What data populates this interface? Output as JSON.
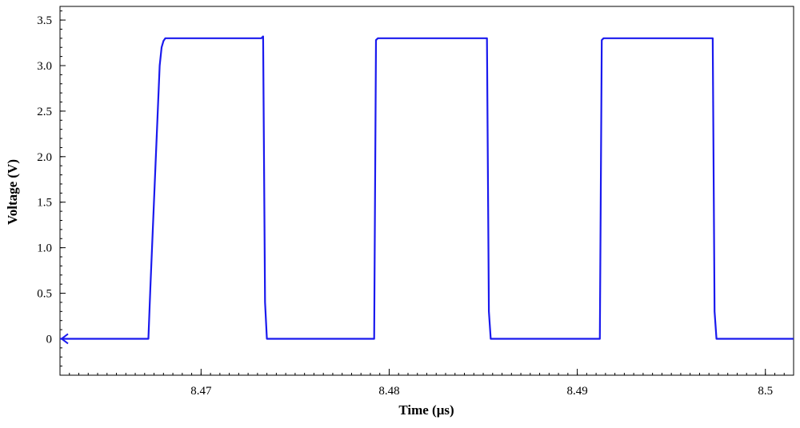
{
  "chart_data": {
    "type": "line",
    "title": "",
    "xlabel": "Time (μs)",
    "ylabel": "Voltage (V)",
    "xlim": [
      8.4625,
      8.5015
    ],
    "ylim": [
      -0.4,
      3.65
    ],
    "x_ticks": [
      {
        "value": 8.47,
        "label": "8.47"
      },
      {
        "value": 8.48,
        "label": "8.48"
      },
      {
        "value": 8.49,
        "label": "8.49"
      },
      {
        "value": 8.5,
        "label": "8.5"
      }
    ],
    "y_ticks": [
      {
        "value": 0,
        "label": "0"
      },
      {
        "value": 0.5,
        "label": "0.5"
      },
      {
        "value": 1.0,
        "label": "1.0"
      },
      {
        "value": 1.5,
        "label": "1.5"
      },
      {
        "value": 2.0,
        "label": "2.0"
      },
      {
        "value": 2.5,
        "label": "2.5"
      },
      {
        "value": 3.0,
        "label": "3.0"
      },
      {
        "value": 3.5,
        "label": "3.5"
      }
    ],
    "grid": false,
    "series": [
      {
        "color": "#1a1aee",
        "x": [
          8.4625,
          8.4672,
          8.4673,
          8.4678,
          8.4679,
          8.468,
          8.4681,
          8.4732,
          8.4733,
          8.4734,
          8.4735,
          8.4792,
          8.4793,
          8.4794,
          8.4852,
          8.4853,
          8.4854,
          8.4912,
          8.4913,
          8.4914,
          8.4972,
          8.4973,
          8.4974,
          8.5015
        ],
        "y": [
          0,
          0,
          0.55,
          3.0,
          3.2,
          3.27,
          3.3,
          3.3,
          3.32,
          0.4,
          0,
          0,
          3.28,
          3.3,
          3.3,
          0.3,
          0,
          0,
          3.28,
          3.3,
          3.3,
          0.3,
          0,
          0
        ]
      }
    ],
    "cursor_marker": {
      "color": "#1a1aee",
      "y": 0
    }
  }
}
